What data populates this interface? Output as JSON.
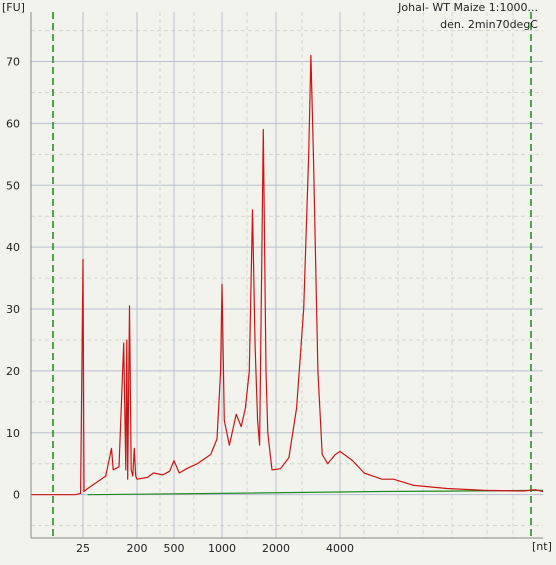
{
  "chart_data": {
    "type": "line",
    "title": "Johal- WT Maize 1:1000...",
    "subtitle": "den. 2min70degC",
    "ylabel": "[FU]",
    "xlabel": "[nt]",
    "ylim": [
      -7,
      78
    ],
    "y_ticks": [
      0,
      10,
      20,
      30,
      40,
      50,
      60,
      70
    ],
    "x_ticks": [
      "25",
      "200",
      "500",
      "1000",
      "2000",
      "4000"
    ],
    "x_scale": "log-ladder (nt)",
    "grid": true,
    "marker_lines": "green dashed, left and right",
    "colors": {
      "sample": "#cc1414",
      "baseline": "#1f8a1f",
      "marker": "#1a8a1a",
      "grid_major": "#b9bfcf",
      "grid_minor": "#d4d4cc",
      "background": "#f3f3ee"
    },
    "series": [
      {
        "type": "electropherogram",
        "points": [
          [
            0,
            0
          ],
          [
            22,
            0
          ],
          [
            24,
            0.2
          ],
          [
            25,
            38
          ],
          [
            26,
            0.5
          ],
          [
            30,
            1
          ],
          [
            60,
            3
          ],
          [
            75,
            7.5
          ],
          [
            80,
            4
          ],
          [
            100,
            4.5
          ],
          [
            120,
            24.5
          ],
          [
            130,
            4
          ],
          [
            135,
            25
          ],
          [
            140,
            2.5
          ],
          [
            150,
            30.5
          ],
          [
            160,
            4
          ],
          [
            170,
            3
          ],
          [
            180,
            7.5
          ],
          [
            190,
            3
          ],
          [
            200,
            2.5
          ],
          [
            260,
            2.8
          ],
          [
            300,
            3.5
          ],
          [
            380,
            3.2
          ],
          [
            450,
            3.8
          ],
          [
            500,
            5.5
          ],
          [
            540,
            3.5
          ],
          [
            600,
            4.2
          ],
          [
            700,
            5
          ],
          [
            850,
            6.5
          ],
          [
            930,
            9
          ],
          [
            980,
            20
          ],
          [
            1000,
            34
          ],
          [
            1030,
            12
          ],
          [
            1100,
            8
          ],
          [
            1200,
            13
          ],
          [
            1280,
            11
          ],
          [
            1350,
            14
          ],
          [
            1420,
            20
          ],
          [
            1480,
            46
          ],
          [
            1530,
            24
          ],
          [
            1580,
            12
          ],
          [
            1620,
            8
          ],
          [
            1700,
            59
          ],
          [
            1760,
            20
          ],
          [
            1800,
            10
          ],
          [
            1900,
            4
          ],
          [
            2100,
            4.2
          ],
          [
            2300,
            6
          ],
          [
            2500,
            14
          ],
          [
            2700,
            30
          ],
          [
            2850,
            55
          ],
          [
            2920,
            71
          ],
          [
            3000,
            55
          ],
          [
            3150,
            20
          ],
          [
            3300,
            6.5
          ],
          [
            3500,
            5
          ],
          [
            3800,
            6.5
          ],
          [
            4000,
            7
          ],
          [
            4400,
            5.5
          ],
          [
            4800,
            3.5
          ],
          [
            5500,
            2.5
          ],
          [
            6000,
            2.5
          ],
          [
            7000,
            1.5
          ],
          [
            9000,
            1
          ],
          [
            12000,
            0.7
          ],
          [
            16000,
            0.6
          ],
          [
            18000,
            0.8
          ],
          [
            20000,
            0.5
          ]
        ]
      },
      {
        "type": "baseline",
        "points": [
          [
            30,
            0
          ],
          [
            1000,
            0.2
          ],
          [
            5000,
            0.5
          ],
          [
            10000,
            0.6
          ],
          [
            20000,
            0.7
          ]
        ]
      }
    ],
    "markers_nt": [
      15,
      17000
    ]
  }
}
